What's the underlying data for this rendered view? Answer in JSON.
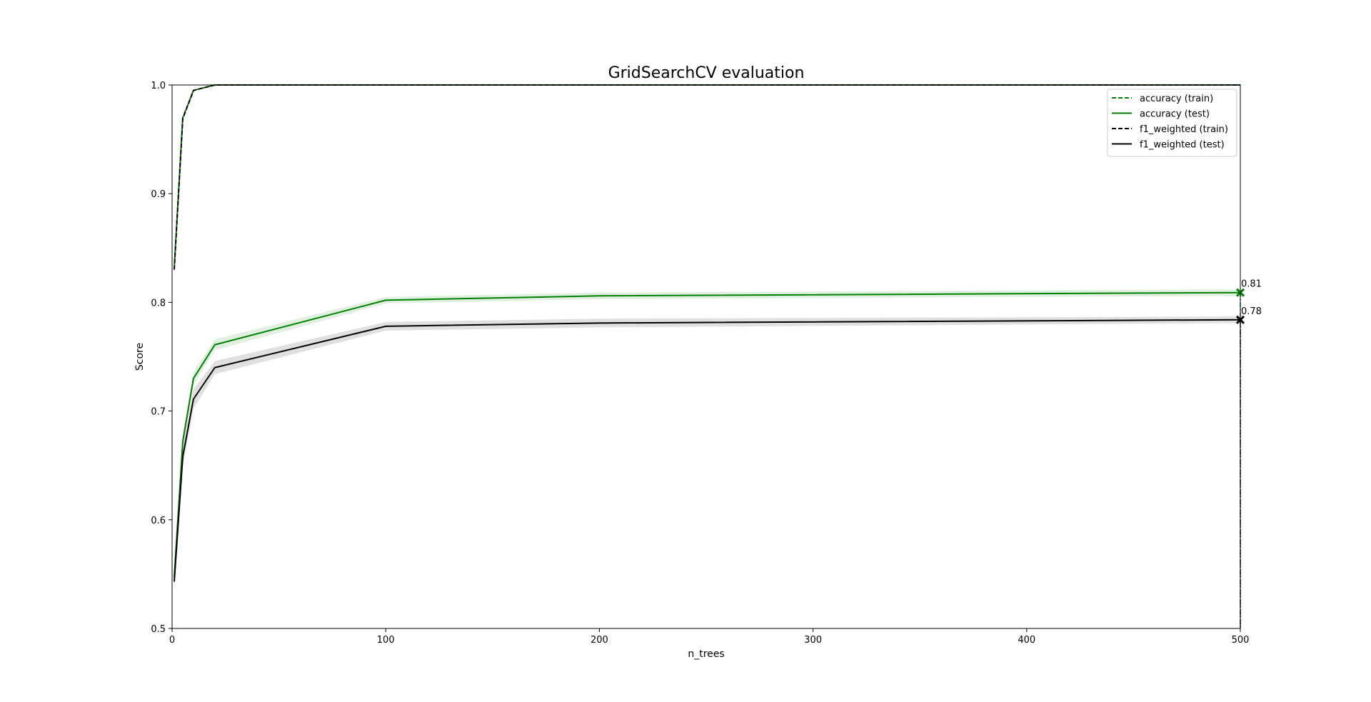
{
  "chart_data": {
    "type": "line",
    "title": "GridSearchCV evaluation",
    "xlabel": "n_trees",
    "ylabel": "Score",
    "xlim": [
      0,
      500
    ],
    "ylim": [
      0.5,
      1.0
    ],
    "x_ticks": [
      "0",
      "100",
      "200",
      "300",
      "400",
      "500"
    ],
    "y_ticks": [
      "0.5",
      "0.6",
      "0.7",
      "0.8",
      "0.9",
      "1.0"
    ],
    "grid": false,
    "legend_position": "top-right",
    "x": [
      1,
      5,
      10,
      20,
      100,
      200,
      500
    ],
    "series": [
      {
        "name": "accuracy (train)",
        "color": "#008000",
        "style": "dashed",
        "values": [
          0.832,
          0.97,
          0.995,
          1.0,
          1.0,
          1.0,
          1.0
        ],
        "band": [
          0,
          0,
          0,
          0,
          0,
          0,
          0
        ]
      },
      {
        "name": "accuracy (test)",
        "color": "#008000",
        "style": "solid",
        "values": [
          0.547,
          0.672,
          0.73,
          0.761,
          0.802,
          0.806,
          0.809
        ],
        "band": [
          0.008,
          0.007,
          0.006,
          0.005,
          0.003,
          0.003,
          0.003
        ]
      },
      {
        "name": "f1_weighted (train)",
        "color": "#000000",
        "style": "dashed",
        "values": [
          0.83,
          0.969,
          0.995,
          1.0,
          1.0,
          1.0,
          1.0
        ],
        "band": [
          0,
          0,
          0,
          0,
          0,
          0,
          0
        ]
      },
      {
        "name": "f1_weighted (test)",
        "color": "#000000",
        "style": "solid",
        "values": [
          0.543,
          0.658,
          0.711,
          0.74,
          0.778,
          0.781,
          0.784
        ],
        "band": [
          0.009,
          0.009,
          0.009,
          0.006,
          0.004,
          0.004,
          0.003
        ]
      }
    ],
    "best_markers": [
      {
        "series": "accuracy (test)",
        "x": 500,
        "y": 0.809,
        "label": "0.81",
        "color": "#008000"
      },
      {
        "series": "f1_weighted (test)",
        "x": 500,
        "y": 0.784,
        "label": "0.78",
        "color": "#000000"
      }
    ]
  }
}
